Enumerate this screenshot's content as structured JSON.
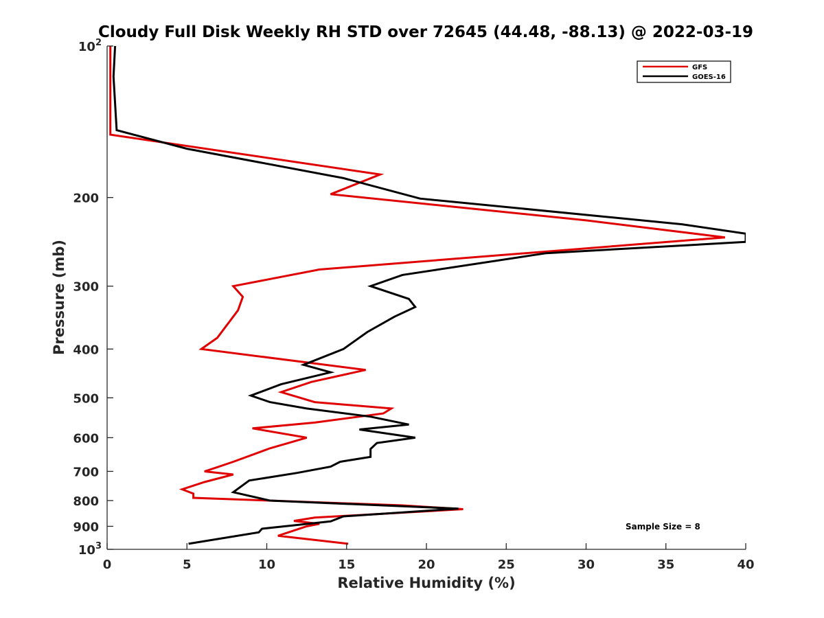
{
  "chart_data": {
    "type": "line",
    "title": "Cloudy Full Disk Weekly RH STD over 72645 (44.48, -88.13) @ 2022-03-19",
    "xlabel": "Relative Humidity (%)",
    "ylabel": "Pressure (mb)",
    "xlim": [
      0,
      40
    ],
    "ylim": [
      100,
      1000
    ],
    "y_scale": "log",
    "y_reversed": true,
    "x_ticks": [
      0,
      5,
      10,
      15,
      20,
      25,
      30,
      35,
      40
    ],
    "y_ticks": [
      {
        "value": 100,
        "base": "10",
        "exp": "2"
      },
      {
        "value": 200,
        "label": "200"
      },
      {
        "value": 300,
        "label": "300"
      },
      {
        "value": 400,
        "label": "400"
      },
      {
        "value": 500,
        "label": "500"
      },
      {
        "value": 600,
        "label": "600"
      },
      {
        "value": 700,
        "label": "700"
      },
      {
        "value": 800,
        "label": "800"
      },
      {
        "value": 900,
        "label": "900"
      },
      {
        "value": 1000,
        "base": "10",
        "exp": "3"
      }
    ],
    "grid": false,
    "legend_position": "top-right",
    "series": [
      {
        "name": "GFS",
        "color": "#e00000",
        "points": [
          [
            0.2,
            100
          ],
          [
            0.2,
            125
          ],
          [
            0.2,
            135
          ],
          [
            0.2,
            140
          ],
          [
            0.2,
            145
          ],
          [
            0.2,
            150
          ],
          [
            17.1,
            180
          ],
          [
            14.0,
            197
          ],
          [
            30.0,
            222
          ],
          [
            38.7,
            240
          ],
          [
            13.3,
            278
          ],
          [
            7.9,
            300
          ],
          [
            8.5,
            315
          ],
          [
            8.2,
            335
          ],
          [
            6.9,
            380
          ],
          [
            5.9,
            400
          ],
          [
            16.2,
            440
          ],
          [
            12.8,
            465
          ],
          [
            10.9,
            487
          ],
          [
            13.0,
            510
          ],
          [
            17.8,
            525
          ],
          [
            17.3,
            537
          ],
          [
            13.0,
            560
          ],
          [
            9.1,
            575
          ],
          [
            12.5,
            600
          ],
          [
            10.2,
            630
          ],
          [
            7.9,
            670
          ],
          [
            6.7,
            690
          ],
          [
            6.1,
            700
          ],
          [
            7.9,
            710
          ],
          [
            6.1,
            735
          ],
          [
            4.7,
            760
          ],
          [
            5.4,
            775
          ],
          [
            5.4,
            790
          ],
          [
            10.2,
            800
          ],
          [
            18.5,
            818
          ],
          [
            22.3,
            832
          ],
          [
            13.0,
            865
          ],
          [
            11.7,
            878
          ],
          [
            13.3,
            890
          ],
          [
            12.5,
            900
          ],
          [
            10.7,
            940
          ],
          [
            15.1,
            975
          ]
        ]
      },
      {
        "name": "GOES-16",
        "color": "#000000",
        "points": [
          [
            0.5,
            100
          ],
          [
            0.4,
            115
          ],
          [
            0.6,
            147
          ],
          [
            5.0,
            160
          ],
          [
            14.8,
            183
          ],
          [
            19.6,
            201
          ],
          [
            36.0,
            226
          ],
          [
            40.0,
            236
          ],
          [
            40.0,
            245
          ],
          [
            27.5,
            258
          ],
          [
            18.5,
            285
          ],
          [
            16.5,
            300
          ],
          [
            18.9,
            318
          ],
          [
            19.3,
            330
          ],
          [
            18.0,
            345
          ],
          [
            16.3,
            370
          ],
          [
            14.8,
            400
          ],
          [
            12.3,
            430
          ],
          [
            14.0,
            445
          ],
          [
            10.9,
            470
          ],
          [
            9.0,
            495
          ],
          [
            10.2,
            510
          ],
          [
            12.5,
            525
          ],
          [
            16.5,
            545
          ],
          [
            18.9,
            565
          ],
          [
            15.8,
            578
          ],
          [
            19.3,
            600
          ],
          [
            16.9,
            615
          ],
          [
            16.5,
            632
          ],
          [
            16.5,
            655
          ],
          [
            14.6,
            670
          ],
          [
            14.0,
            685
          ],
          [
            11.9,
            705
          ],
          [
            8.9,
            730
          ],
          [
            7.9,
            770
          ],
          [
            10.2,
            800
          ],
          [
            22.0,
            830
          ],
          [
            14.8,
            860
          ],
          [
            14.0,
            880
          ],
          [
            9.7,
            910
          ],
          [
            9.5,
            925
          ],
          [
            5.1,
            975
          ]
        ]
      }
    ],
    "annotation": "Sample Size = 8"
  }
}
